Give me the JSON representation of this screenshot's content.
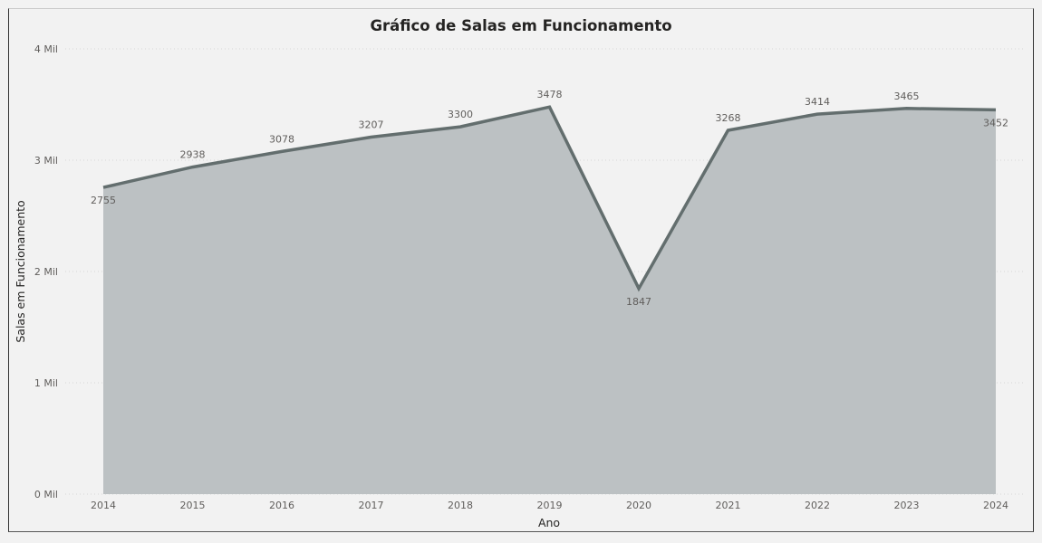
{
  "chart_data": {
    "type": "area",
    "title": "Gráfico de Salas em Funcionamento",
    "xlabel": "Ano",
    "ylabel": "Salas em Funcionamento",
    "categories": [
      "2014",
      "2015",
      "2016",
      "2017",
      "2018",
      "2019",
      "2020",
      "2021",
      "2022",
      "2023",
      "2024"
    ],
    "values": [
      2755,
      2938,
      3078,
      3207,
      3300,
      3478,
      1847,
      3268,
      3414,
      3465,
      3452
    ],
    "series": [
      {
        "name": "Salas em Funcionamento",
        "values": [
          2755,
          2938,
          3078,
          3207,
          3300,
          3478,
          1847,
          3268,
          3414,
          3465,
          3452
        ]
      }
    ],
    "ylim": [
      0,
      4000
    ],
    "yticks": [
      {
        "value": 0,
        "label": "0 Mil"
      },
      {
        "value": 1000,
        "label": "1 Mil"
      },
      {
        "value": 2000,
        "label": "2 Mil"
      },
      {
        "value": 3000,
        "label": "3 Mil"
      },
      {
        "value": 4000,
        "label": "4 Mil"
      }
    ],
    "grid": "horizontal dotted",
    "legend": "none",
    "colors": {
      "fill": "#bcc1c3",
      "line": "#636e6e",
      "background": "#f2f2f2"
    }
  }
}
